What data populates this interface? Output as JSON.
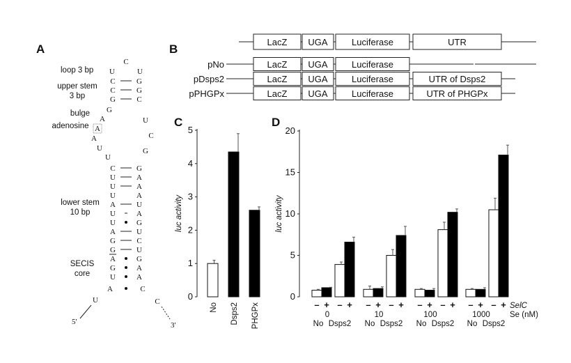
{
  "panels": {
    "a": "A",
    "b": "B",
    "c": "C",
    "d": "D"
  },
  "panel_a": {
    "labels": {
      "loop": "loop 3 bp",
      "upper_stem_1": "upper stem",
      "upper_stem_2": "3 bp",
      "bulge_1": "bulge",
      "bulge_2": "adenosine",
      "lower_stem_1": "lower stem",
      "lower_stem_2": "10 bp",
      "secis_1": "SECIS",
      "secis_2": "core",
      "five_prime": "5'",
      "three_prime": "3'"
    },
    "loop": [
      "U",
      "C",
      "U"
    ],
    "upper_stem_pairs": [
      [
        "C",
        "G",
        "-"
      ],
      [
        "C",
        "G",
        "-"
      ],
      [
        "G",
        "C",
        "-"
      ]
    ],
    "left_internal": [
      "G",
      "A",
      "A",
      "A",
      "U",
      "U"
    ],
    "right_internal": [
      "U",
      "C",
      "G"
    ],
    "lower_stem_pairs": [
      [
        "C",
        "G",
        "-"
      ],
      [
        "U",
        "A",
        "-"
      ],
      [
        "U",
        "A",
        "-"
      ],
      [
        "U",
        "A",
        ""
      ],
      [
        "A",
        "U",
        "-"
      ],
      [
        "U",
        "A",
        "."
      ],
      [
        "U",
        "G",
        "•"
      ],
      [
        "A",
        "U",
        "-"
      ],
      [
        "G",
        "C",
        "-"
      ],
      [
        "G",
        "U",
        "-"
      ],
      [
        "A",
        "G",
        "•"
      ],
      [
        "G",
        "A",
        "•"
      ],
      [
        "U",
        "A",
        "•"
      ],
      [
        "A",
        "C",
        "•"
      ]
    ],
    "tails": [
      "U",
      "C"
    ]
  },
  "panel_b": {
    "rows": [
      {
        "name": "",
        "segments": [
          "LacZ",
          "UGA",
          "Luciferase",
          "UTR"
        ]
      },
      {
        "name": "pNo",
        "segments": [
          "LacZ",
          "UGA",
          "Luciferase",
          ""
        ]
      },
      {
        "name": "pDsps2",
        "segments": [
          "LacZ",
          "UGA",
          "Luciferase",
          "UTR of Dsps2"
        ]
      },
      {
        "name": "pPHGPx",
        "segments": [
          "LacZ",
          "UGA",
          "Luciferase",
          "UTR of PHGPx"
        ]
      }
    ]
  },
  "chart_data": [
    {
      "type": "bar",
      "panel": "C",
      "ylabel": "luc activity",
      "ylim": [
        0,
        5
      ],
      "yticks": [
        "0",
        "1",
        "2",
        "3",
        "4",
        "5"
      ],
      "categories": [
        "No",
        "Dsps2",
        "PHGPx"
      ],
      "values": [
        1.0,
        4.35,
        2.6
      ],
      "errors": [
        0.1,
        0.55,
        0.1
      ],
      "fills": [
        "#ffffff",
        "#000000",
        "#000000"
      ],
      "grid": false
    },
    {
      "type": "bar",
      "panel": "D",
      "ylabel": "luc activity",
      "ylim": [
        0,
        20
      ],
      "yticks": [
        "0",
        "5",
        "10",
        "15",
        "20"
      ],
      "selc_label": "SelC",
      "se_label": "Se (nM)",
      "groups": [
        {
          "se": "0",
          "constructs": [
            "No",
            "Dsps2"
          ],
          "values": [
            0.8,
            1.1,
            3.9,
            6.6
          ],
          "errors": [
            0.1,
            0.05,
            0.3,
            0.6
          ]
        },
        {
          "se": "10",
          "constructs": [
            "No",
            "Dsps2"
          ],
          "values": [
            0.9,
            1.0,
            5.0,
            7.4
          ],
          "errors": [
            0.4,
            0.2,
            0.7,
            1.1
          ]
        },
        {
          "se": "100",
          "constructs": [
            "No",
            "Dsps2"
          ],
          "values": [
            0.9,
            0.8,
            8.1,
            10.2
          ],
          "errors": [
            0.1,
            0.2,
            0.9,
            0.4
          ]
        },
        {
          "se": "1000",
          "constructs": [
            "No",
            "Dsps2"
          ],
          "values": [
            0.9,
            0.9,
            10.5,
            17.1
          ],
          "errors": [
            0.1,
            0.2,
            1.4,
            1.2
          ]
        }
      ],
      "selc": [
        "–",
        "+",
        "–",
        "+"
      ],
      "fills": [
        "#ffffff",
        "#000000",
        "#ffffff",
        "#000000"
      ],
      "grid": false
    }
  ]
}
